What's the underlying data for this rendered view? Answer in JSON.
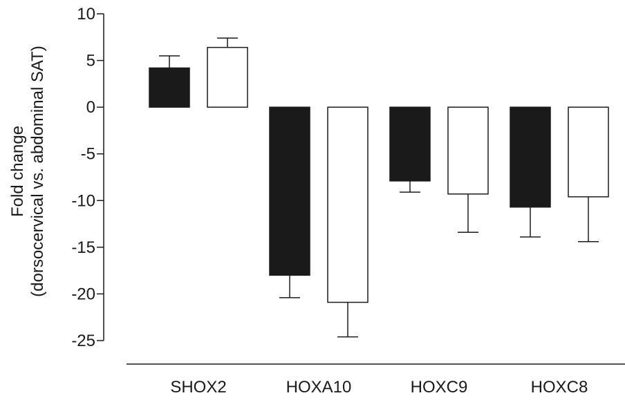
{
  "chart_data": {
    "type": "bar",
    "categories": [
      "SHOX2",
      "HOXA10",
      "HOXC9",
      "HOXC8"
    ],
    "series": [
      {
        "fill": "#1a1a1a",
        "values": [
          4.2,
          -18.0,
          -7.9,
          -10.7
        ],
        "errors": [
          1.3,
          2.4,
          1.2,
          3.2
        ]
      },
      {
        "fill": "#ffffff",
        "values": [
          6.4,
          -20.9,
          -9.3,
          -9.6
        ],
        "errors": [
          1.0,
          3.7,
          4.1,
          4.8
        ]
      }
    ],
    "ylabel_line1": "Fold change",
    "ylabel_line2": "(dorsocervical vs. abdominal SAT)",
    "ylim": [
      -25,
      10
    ],
    "yticks": [
      10,
      5,
      0,
      -5,
      -10,
      -15,
      -20,
      -25
    ],
    "grid": false,
    "legend": "none"
  }
}
